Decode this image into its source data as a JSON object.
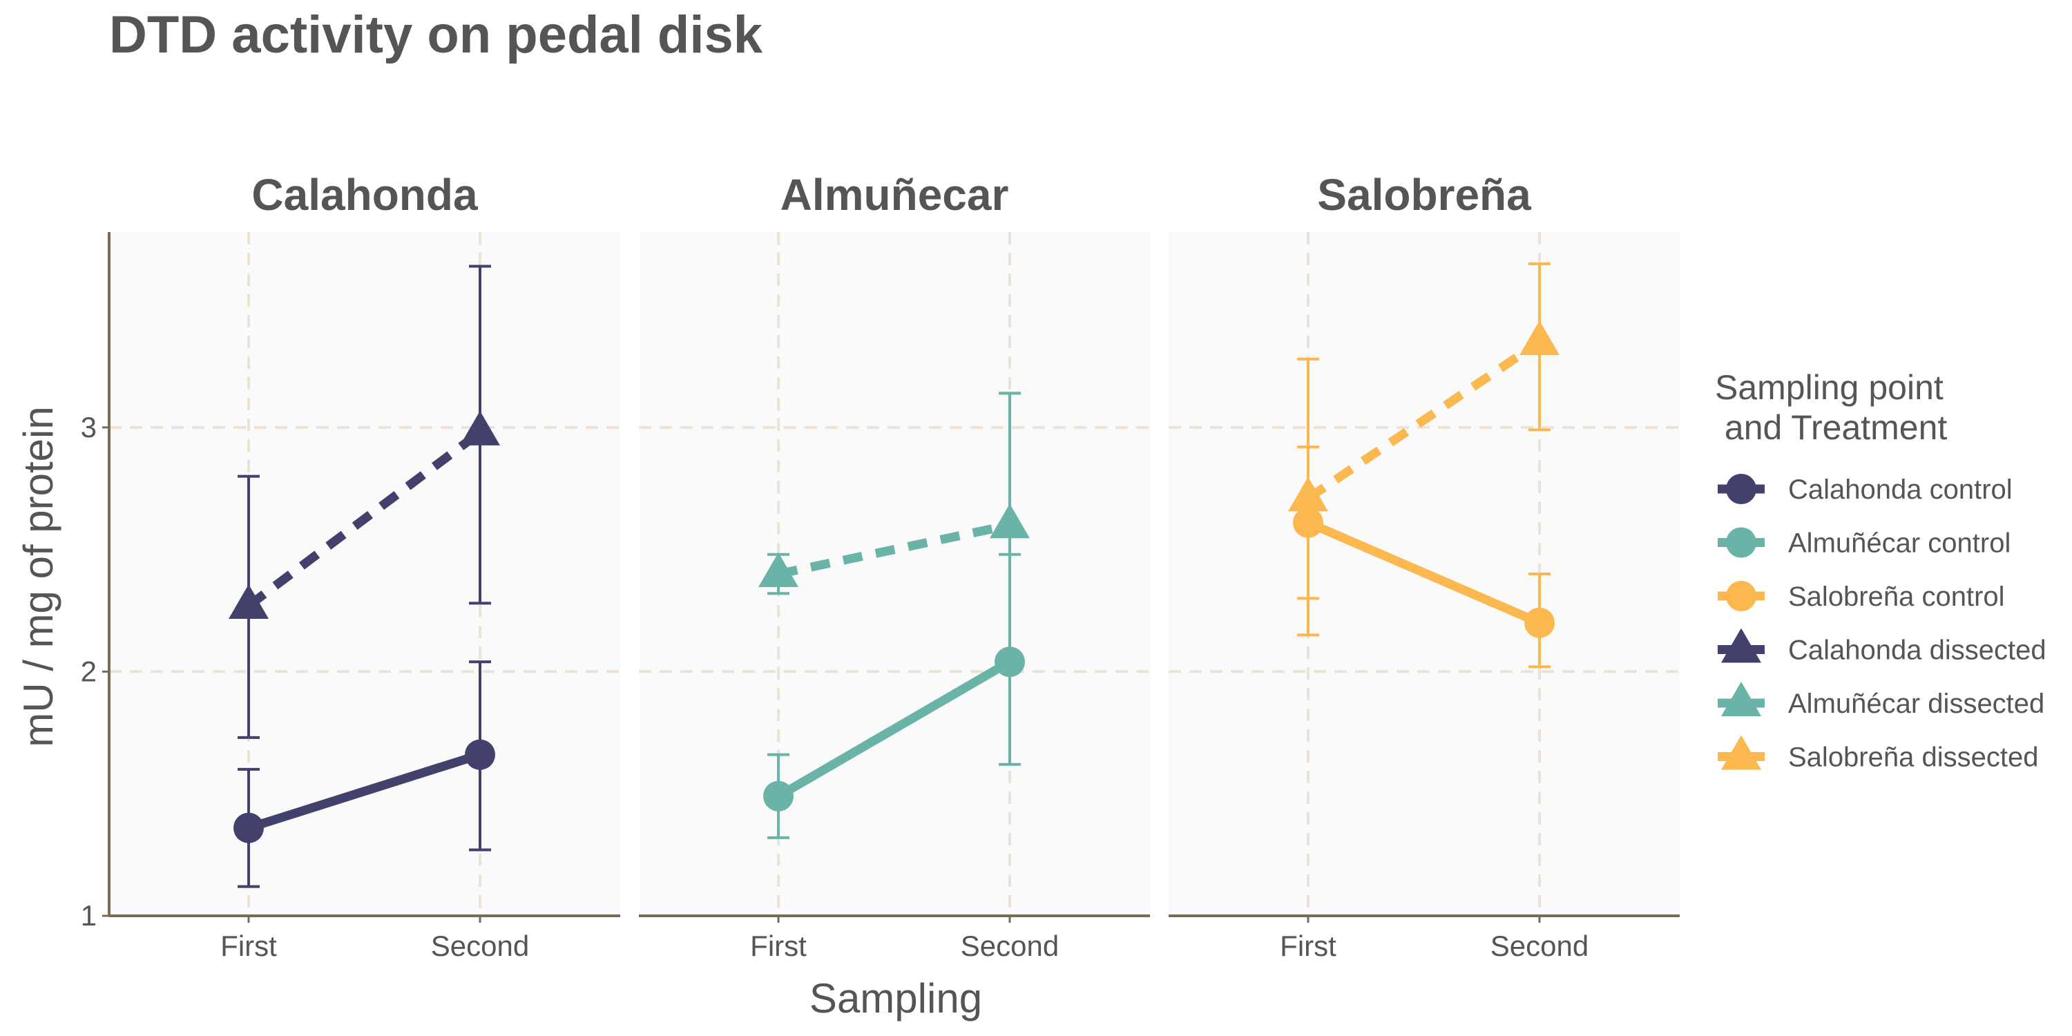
{
  "chart_data": {
    "type": "line",
    "title": "DTD activity on pedal disk",
    "xlabel": "Sampling",
    "ylabel": "mU / mg  of protein",
    "ylim": [
      1,
      3.8
    ],
    "y_ticks": [
      1,
      2,
      3
    ],
    "categories": [
      "First",
      "Second"
    ],
    "grid": true,
    "panels": [
      {
        "name": "Calahonda",
        "series": [
          {
            "legend_index": 0,
            "values": [
              1.36,
              1.66
            ],
            "err_low": [
              1.12,
              1.27
            ],
            "err_high": [
              1.6,
              2.04
            ]
          },
          {
            "legend_index": 3,
            "values": [
              2.27,
              2.98
            ],
            "err_low": [
              1.73,
              2.28
            ],
            "err_high": [
              2.8,
              3.66
            ]
          }
        ]
      },
      {
        "name": "Almuñecar",
        "series": [
          {
            "legend_index": 1,
            "values": [
              1.49,
              2.04
            ],
            "err_low": [
              1.32,
              1.62
            ],
            "err_high": [
              1.66,
              3.14
            ]
          },
          {
            "legend_index": 4,
            "values": [
              2.4,
              2.6
            ],
            "err_low": [
              2.32,
              2.48
            ],
            "err_high": [
              2.48,
              3.14
            ]
          }
        ]
      },
      {
        "name": "Salobreña",
        "series": [
          {
            "legend_index": 2,
            "values": [
              2.61,
              2.2
            ],
            "err_low": [
              2.3,
              2.02
            ],
            "err_high": [
              2.92,
              2.4
            ]
          },
          {
            "legend_index": 5,
            "values": [
              2.71,
              3.35
            ],
            "err_low": [
              2.15,
              2.99
            ],
            "err_high": [
              3.28,
              3.67
            ]
          }
        ]
      }
    ],
    "legend": {
      "title": "Sampling point\n and Treatment",
      "placement": "right",
      "entries": [
        {
          "label": "Calahonda control",
          "color": "#41416b",
          "shape": "circle",
          "line": "solid"
        },
        {
          "label": "Almuñécar control",
          "color": "#69b3a9",
          "shape": "circle",
          "line": "solid"
        },
        {
          "label": "Salobreña control",
          "color": "#fbb84e",
          "shape": "circle",
          "line": "solid"
        },
        {
          "label": "Calahonda dissected",
          "color": "#41416b",
          "shape": "triangle",
          "line": "dashed"
        },
        {
          "label": "Almuñécar dissected",
          "color": "#69b3a9",
          "shape": "triangle",
          "line": "dashed"
        },
        {
          "label": "Salobreña dissected",
          "color": "#fbb84e",
          "shape": "triangle",
          "line": "dashed"
        }
      ]
    },
    "colors": {
      "text": "#555555",
      "axis_line": "#7a6a55",
      "grid": "#ece3d8",
      "panel_bg": "#fafafa"
    }
  }
}
